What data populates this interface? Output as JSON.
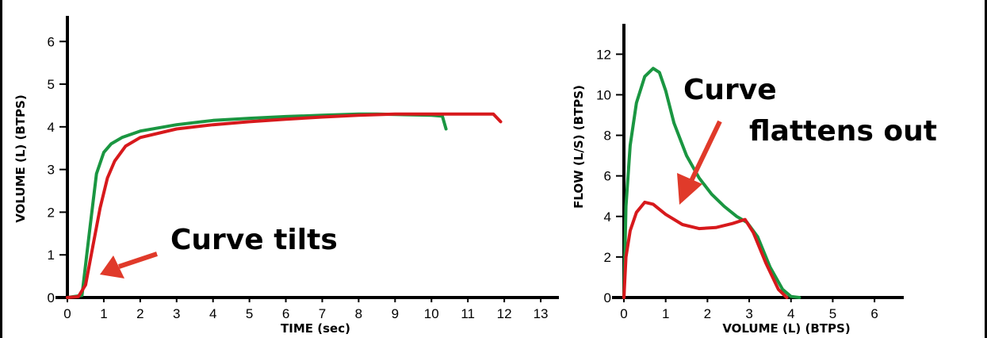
{
  "chart_data": [
    {
      "type": "line",
      "title": "",
      "xlabel": "TIME (sec)",
      "ylabel": "VOLUME (L) (BTPS)",
      "xlim": [
        0,
        13.5
      ],
      "ylim": [
        0,
        6.6
      ],
      "x_ticks": [
        "0",
        "1",
        "2",
        "3",
        "4",
        "5",
        "6",
        "7",
        "8",
        "9",
        "10",
        "11",
        "12",
        "13"
      ],
      "y_ticks": [
        "0",
        "1",
        "2",
        "3",
        "4",
        "5",
        "6"
      ],
      "grid": false,
      "annotation": "Curve tilts",
      "series": [
        {
          "color": "#1a9641",
          "x": [
            0,
            0.4,
            0.6,
            0.8,
            1.0,
            1.2,
            1.5,
            2.0,
            3.0,
            4.0,
            5.0,
            6.0,
            7.0,
            8.0,
            8.5,
            9.0,
            10.0,
            10.3,
            10.4
          ],
          "y": [
            0,
            0.05,
            1.5,
            2.9,
            3.4,
            3.6,
            3.75,
            3.9,
            4.05,
            4.15,
            4.2,
            4.24,
            4.27,
            4.3,
            4.3,
            4.29,
            4.27,
            4.25,
            3.95
          ]
        },
        {
          "color": "#d7191c",
          "x": [
            0,
            0.3,
            0.5,
            0.7,
            0.9,
            1.1,
            1.3,
            1.6,
            2.0,
            3.0,
            4.0,
            5.0,
            6.0,
            7.0,
            8.0,
            9.0,
            10.0,
            11.0,
            11.7,
            11.9
          ],
          "y": [
            0,
            0.02,
            0.3,
            1.2,
            2.1,
            2.8,
            3.2,
            3.55,
            3.75,
            3.95,
            4.05,
            4.12,
            4.18,
            4.23,
            4.27,
            4.3,
            4.3,
            4.3,
            4.3,
            4.12
          ]
        }
      ]
    },
    {
      "type": "line",
      "title": "",
      "xlabel": "VOLUME (L) (BTPS)",
      "ylabel": "FLOW (L/S) (BTPS)",
      "xlim": [
        0,
        6.7
      ],
      "ylim": [
        0,
        13.5
      ],
      "x_ticks": [
        "0",
        "1",
        "2",
        "3",
        "4",
        "5",
        "6"
      ],
      "y_ticks": [
        "0",
        "2",
        "4",
        "6",
        "8",
        "10",
        "12"
      ],
      "grid": false,
      "annotation": "Curve flattens out",
      "series": [
        {
          "color": "#1a9641",
          "x": [
            0,
            0.05,
            0.15,
            0.3,
            0.5,
            0.7,
            0.85,
            1.0,
            1.2,
            1.5,
            1.8,
            2.1,
            2.4,
            2.7,
            2.95,
            3.2,
            3.5,
            3.8,
            4.0,
            4.2
          ],
          "y": [
            0,
            4.5,
            7.5,
            9.6,
            10.9,
            11.3,
            11.1,
            10.2,
            8.6,
            7.0,
            5.9,
            5.1,
            4.5,
            4.0,
            3.7,
            3.0,
            1.5,
            0.4,
            0.05,
            0
          ]
        },
        {
          "color": "#d7191c",
          "x": [
            0,
            0.05,
            0.15,
            0.3,
            0.5,
            0.7,
            1.0,
            1.4,
            1.8,
            2.2,
            2.6,
            2.9,
            3.1,
            3.4,
            3.7,
            3.9
          ],
          "y": [
            0,
            2.0,
            3.3,
            4.2,
            4.7,
            4.6,
            4.1,
            3.6,
            3.4,
            3.45,
            3.65,
            3.85,
            3.2,
            1.7,
            0.4,
            0
          ]
        }
      ]
    }
  ],
  "annotations": {
    "left": "Curve tilts",
    "right_line1": "Curve",
    "right_line2": "flattens out"
  },
  "colors": {
    "green": "#1a9641",
    "red": "#d7191c",
    "arrow": "#e03a2a"
  }
}
